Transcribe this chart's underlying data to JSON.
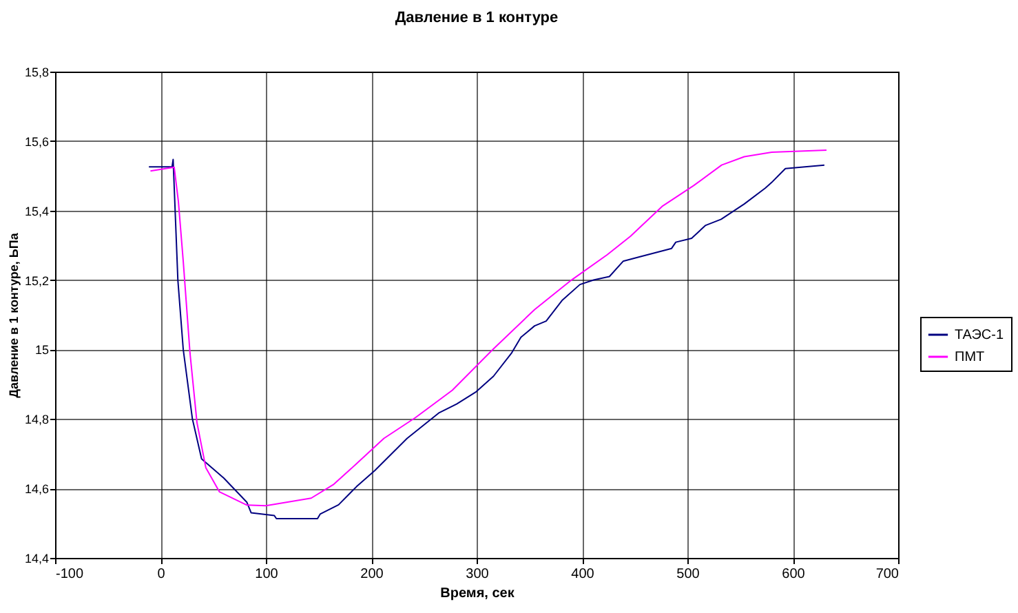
{
  "chart_data": {
    "type": "line",
    "title": "Давление в 1 контуре",
    "xlabel": "Время, сек",
    "ylabel": "Давление в 1 контуре, ЬПа",
    "xlim": [
      -100,
      700
    ],
    "xticks": [
      -100,
      0,
      100,
      200,
      300,
      400,
      500,
      600,
      700
    ],
    "ylim": [
      14.4,
      15.8
    ],
    "yticks": [
      {
        "value": 14.4,
        "label": "14,4"
      },
      {
        "value": 14.6,
        "label": "14,6"
      },
      {
        "value": 14.8,
        "label": "14,8"
      },
      15,
      {
        "value": 15.2,
        "label": "15,2"
      },
      {
        "value": 15.4,
        "label": "15,4"
      },
      {
        "value": 15.6,
        "label": "15,6"
      },
      {
        "value": 15.8,
        "label": "15,8"
      }
    ],
    "grid": true,
    "legend": "right",
    "marker": "none",
    "line_style": "solid",
    "series": [
      {
        "name": "ТАЭС-1",
        "color": "#000080",
        "x": [
          -11,
          11,
          12,
          16.5,
          21.6,
          30.3,
          39,
          60,
          82,
          86,
          108,
          110,
          149,
          151.5,
          169,
          186,
          203.5,
          234,
          264,
          281,
          299,
          316,
          333,
          342,
          355,
          366,
          381,
          398,
          411,
          426,
          439,
          455,
          485,
          489,
          504,
          517,
          532,
          554,
          574,
          580,
          593,
          630
        ],
        "values": [
          15.526,
          15.526,
          15.547,
          15.2,
          15.0,
          14.8,
          14.685,
          14.63,
          14.56,
          14.53,
          14.522,
          14.513,
          14.513,
          14.526,
          14.553,
          14.605,
          14.652,
          14.744,
          14.817,
          14.843,
          14.877,
          14.923,
          14.989,
          15.035,
          15.068,
          15.082,
          15.141,
          15.187,
          15.2,
          15.21,
          15.254,
          15.267,
          15.291,
          15.309,
          15.32,
          15.357,
          15.375,
          15.419,
          15.465,
          15.481,
          15.521,
          15.531
        ]
      },
      {
        "name": "ПМТ",
        "color": "#ff00ff",
        "x": [
          -9.5,
          13,
          17,
          21.6,
          28,
          34.6,
          43,
          56,
          82,
          100,
          143,
          164.5,
          186,
          212,
          242,
          277,
          316,
          355,
          390,
          424,
          446,
          476,
          506,
          532.5,
          554,
          580,
          632
        ],
        "values": [
          15.514,
          15.525,
          15.426,
          15.254,
          14.99,
          14.79,
          14.66,
          14.59,
          14.552,
          14.55,
          14.572,
          14.612,
          14.671,
          14.744,
          14.804,
          14.883,
          15.002,
          15.115,
          15.2,
          15.273,
          15.326,
          15.412,
          15.472,
          15.531,
          15.555,
          15.568,
          15.574
        ]
      }
    ]
  }
}
